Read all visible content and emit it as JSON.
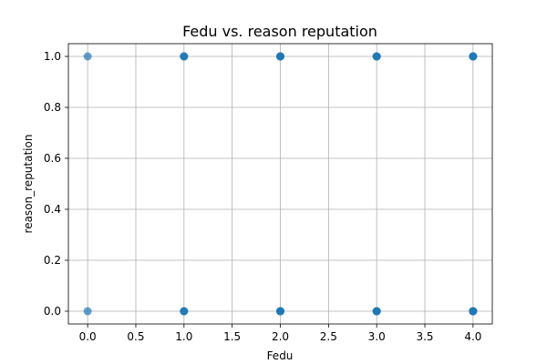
{
  "chart_data": {
    "type": "scatter",
    "title": "Fedu vs. reason reputation",
    "xlabel": "Fedu",
    "ylabel": "reason_reputation",
    "xlim": [
      -0.2,
      4.2
    ],
    "ylim": [
      -0.05,
      1.05
    ],
    "xticks": [
      0.0,
      0.5,
      1.0,
      1.5,
      2.0,
      2.5,
      3.0,
      3.5,
      4.0
    ],
    "xtick_labels": [
      "0.0",
      "0.5",
      "1.0",
      "1.5",
      "2.0",
      "2.5",
      "3.0",
      "3.5",
      "4.0"
    ],
    "yticks": [
      0.0,
      0.2,
      0.4,
      0.6,
      0.8,
      1.0
    ],
    "ytick_labels": [
      "0.0",
      "0.2",
      "0.4",
      "0.6",
      "0.8",
      "1.0"
    ],
    "grid": true,
    "point_color": "#1f77b4",
    "point_alpha": 0.7,
    "points": [
      {
        "x": 0,
        "y": 0
      },
      {
        "x": 0,
        "y": 1
      },
      {
        "x": 1,
        "y": 0
      },
      {
        "x": 1,
        "y": 0
      },
      {
        "x": 1,
        "y": 0
      },
      {
        "x": 1,
        "y": 1
      },
      {
        "x": 1,
        "y": 1
      },
      {
        "x": 1,
        "y": 1
      },
      {
        "x": 2,
        "y": 0
      },
      {
        "x": 2,
        "y": 0
      },
      {
        "x": 2,
        "y": 0
      },
      {
        "x": 2,
        "y": 0
      },
      {
        "x": 2,
        "y": 1
      },
      {
        "x": 2,
        "y": 1
      },
      {
        "x": 2,
        "y": 1
      },
      {
        "x": 2,
        "y": 1
      },
      {
        "x": 3,
        "y": 0
      },
      {
        "x": 3,
        "y": 0
      },
      {
        "x": 3,
        "y": 0
      },
      {
        "x": 3,
        "y": 0
      },
      {
        "x": 3,
        "y": 1
      },
      {
        "x": 3,
        "y": 1
      },
      {
        "x": 3,
        "y": 1
      },
      {
        "x": 3,
        "y": 1
      },
      {
        "x": 4,
        "y": 0
      },
      {
        "x": 4,
        "y": 0
      },
      {
        "x": 4,
        "y": 0
      },
      {
        "x": 4,
        "y": 0
      },
      {
        "x": 4,
        "y": 1
      },
      {
        "x": 4,
        "y": 1
      },
      {
        "x": 4,
        "y": 1
      },
      {
        "x": 4,
        "y": 1
      }
    ]
  }
}
